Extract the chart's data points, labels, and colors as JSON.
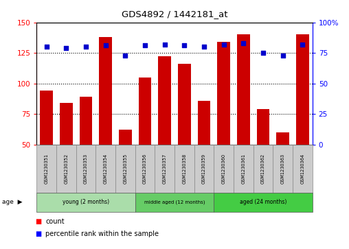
{
  "title": "GDS4892 / 1442181_at",
  "samples": [
    "GSM1230351",
    "GSM1230352",
    "GSM1230353",
    "GSM1230354",
    "GSM1230355",
    "GSM1230356",
    "GSM1230357",
    "GSM1230358",
    "GSM1230359",
    "GSM1230360",
    "GSM1230361",
    "GSM1230362",
    "GSM1230363",
    "GSM1230364"
  ],
  "counts": [
    94,
    84,
    89,
    138,
    62,
    105,
    122,
    116,
    86,
    134,
    140,
    79,
    60,
    140
  ],
  "percentiles": [
    80,
    79,
    80,
    81,
    73,
    81,
    82,
    81,
    80,
    82,
    83,
    75,
    73,
    82
  ],
  "groups": [
    {
      "label": "young (2 months)",
      "start": 0,
      "end": 5,
      "color": "#aaddaa"
    },
    {
      "label": "middle aged (12 months)",
      "start": 5,
      "end": 9,
      "color": "#66cc66"
    },
    {
      "label": "aged (24 months)",
      "start": 9,
      "end": 14,
      "color": "#44cc44"
    }
  ],
  "ylim_left": [
    50,
    150
  ],
  "ylim_right": [
    0,
    100
  ],
  "yticks_left": [
    50,
    75,
    100,
    125,
    150
  ],
  "yticks_right": [
    0,
    25,
    50,
    75,
    100
  ],
  "ytick_right_labels": [
    "0",
    "25",
    "50",
    "75",
    "100%"
  ],
  "bar_color": "#cc0000",
  "dot_color": "#0000cc",
  "bg_color": "#ffffff",
  "sample_box_color": "#cccccc",
  "grid_yticks": [
    75,
    100,
    125
  ]
}
